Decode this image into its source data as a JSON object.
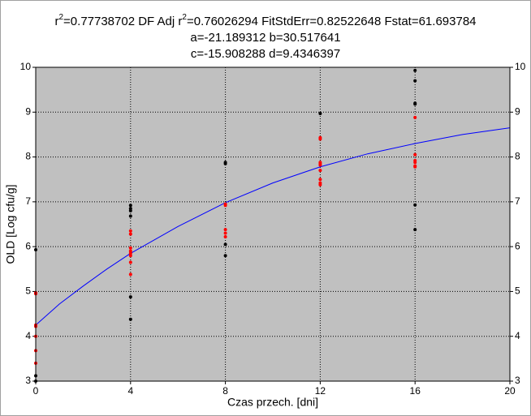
{
  "chart_data": {
    "type": "scatter",
    "title_lines": [
      [
        "r",
        "2",
        "=0.77738702  DF Adj r",
        "2",
        "=0.76026294  FitStdErr=0.82522648  Fstat=61.693784"
      ],
      [
        "a=-21.189312 b=30.517641"
      ],
      [
        "c=-15.908288 d=9.4346397"
      ]
    ],
    "xlabel": "Czas przech. [dni]",
    "ylabel": "OLD [Log cfu/g]",
    "xlim": [
      0,
      20
    ],
    "xticks": [
      0,
      4,
      8,
      12,
      16,
      20
    ],
    "ylim": [
      3,
      10
    ],
    "yticks": [
      3,
      4,
      5,
      6,
      7,
      8,
      9,
      10
    ],
    "grid": true,
    "background": "#c0c0c0",
    "series": [
      {
        "color": "#000000",
        "x": [
          0,
          0,
          0,
          4,
          4,
          4,
          4,
          4,
          4,
          8,
          8,
          8,
          8,
          12,
          16,
          16,
          16,
          16,
          16,
          16
        ],
        "values": [
          5.93,
          3.12,
          3.0,
          6.92,
          6.85,
          6.8,
          6.68,
          4.88,
          4.38,
          7.88,
          7.85,
          6.05,
          5.8,
          8.97,
          9.93,
          9.7,
          9.2,
          9.18,
          6.93,
          6.38
        ]
      },
      {
        "color": "#ff0000",
        "x": [
          0,
          0,
          0,
          0,
          0,
          0,
          0,
          4,
          4,
          4,
          4,
          4,
          4,
          4,
          4,
          8,
          8,
          8,
          8,
          8,
          12,
          12,
          12,
          12,
          12,
          12,
          12,
          12,
          12,
          16,
          16,
          16,
          16,
          16,
          16
        ],
        "values": [
          4.97,
          4.95,
          4.25,
          4.22,
          4.0,
          3.68,
          3.4,
          6.35,
          6.28,
          5.97,
          5.9,
          5.85,
          5.8,
          5.65,
          5.38,
          6.95,
          6.92,
          6.38,
          6.3,
          6.22,
          8.43,
          8.4,
          7.88,
          7.85,
          7.82,
          7.7,
          7.5,
          7.42,
          7.38,
          8.88,
          8.05,
          7.92,
          7.88,
          7.8,
          7.78
        ]
      }
    ],
    "curve": {
      "color": "#0000ff",
      "x": [
        0,
        1,
        2,
        3,
        4,
        6,
        8,
        10,
        12,
        14,
        16,
        18,
        20
      ],
      "values": [
        4.25,
        4.72,
        5.12,
        5.5,
        5.85,
        6.45,
        6.98,
        7.42,
        7.78,
        8.07,
        8.3,
        8.5,
        8.65
      ]
    }
  }
}
